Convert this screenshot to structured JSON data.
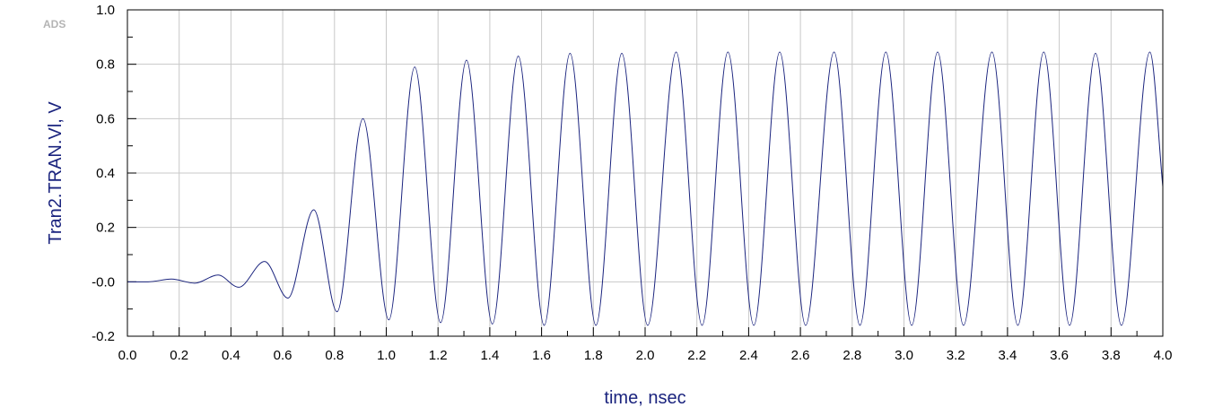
{
  "logo_text": "ADS",
  "chart_data": {
    "type": "line",
    "xlabel": "time, nsec",
    "ylabel": "Tran2.TRAN.Vl, V",
    "xlim": [
      0.0,
      4.0
    ],
    "ylim": [
      -0.2,
      1.0
    ],
    "x_ticks": [
      "0.0",
      "0.2",
      "0.4",
      "0.6",
      "0.8",
      "1.0",
      "1.2",
      "1.4",
      "1.6",
      "1.8",
      "2.0",
      "2.2",
      "2.4",
      "2.6",
      "2.8",
      "3.0",
      "3.2",
      "3.4",
      "3.6",
      "3.8",
      "4.0"
    ],
    "y_ticks": [
      "1.0",
      "0.8",
      "0.6",
      "0.4",
      "0.2",
      "-0.0",
      "-0.2"
    ],
    "grid": true,
    "line_color": "#1a237e",
    "series": [
      {
        "name": "",
        "x": [
          0.0,
          0.08,
          0.17,
          0.26,
          0.35,
          0.43,
          0.53,
          0.62,
          0.72,
          0.81,
          0.91,
          1.01,
          1.11,
          1.21,
          1.31,
          1.41,
          1.51,
          1.61,
          1.71,
          1.81,
          1.91,
          2.01,
          2.12,
          2.22,
          2.32,
          2.42,
          2.52,
          2.62,
          2.73,
          2.83,
          2.93,
          3.03,
          3.13,
          3.23,
          3.34,
          3.44,
          3.54,
          3.64,
          3.74,
          3.84,
          3.95,
          4.0
        ],
        "y": [
          0.0,
          0.0,
          0.01,
          -0.005,
          0.025,
          -0.02,
          0.075,
          -0.06,
          0.265,
          -0.11,
          0.6,
          -0.14,
          0.79,
          -0.15,
          0.815,
          -0.155,
          0.83,
          -0.16,
          0.84,
          -0.16,
          0.84,
          -0.16,
          0.845,
          -0.16,
          0.845,
          -0.16,
          0.845,
          -0.16,
          0.845,
          -0.16,
          0.845,
          -0.16,
          0.845,
          -0.16,
          0.845,
          -0.16,
          0.845,
          -0.16,
          0.84,
          -0.16,
          0.845,
          0.35
        ]
      }
    ]
  }
}
